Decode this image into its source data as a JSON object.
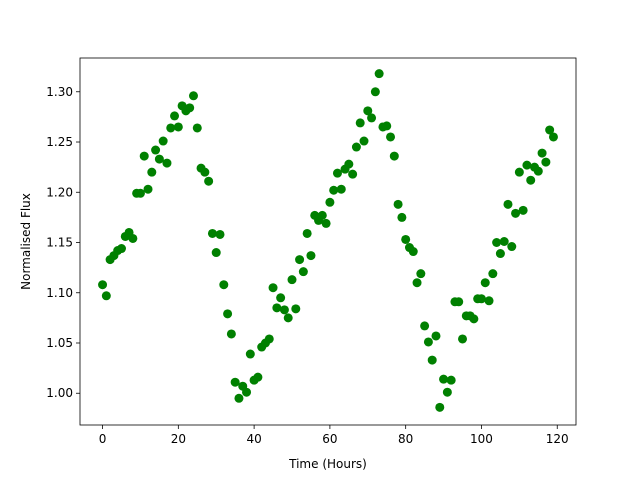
{
  "chart_data": {
    "type": "scatter",
    "xlabel": "Time (Hours)",
    "ylabel": "Normalised Flux",
    "color": "#008000",
    "x": [
      0,
      1,
      2,
      3,
      4,
      5,
      6,
      7,
      8,
      9,
      10,
      11,
      12,
      13,
      14,
      15,
      16,
      17,
      18,
      19,
      20,
      21,
      22,
      23,
      24,
      25,
      26,
      27,
      28,
      29,
      30,
      31,
      32,
      33,
      34,
      35,
      36,
      37,
      38,
      39,
      40,
      41,
      42,
      43,
      44,
      45,
      46,
      47,
      48,
      49,
      50,
      51,
      52,
      53,
      54,
      55,
      56,
      57,
      58,
      59,
      60,
      61,
      62,
      63,
      64,
      65,
      66,
      67,
      68,
      69,
      70,
      71,
      72,
      73,
      74,
      75,
      76,
      77,
      78,
      79,
      80,
      81,
      82,
      83,
      84,
      85,
      86,
      87,
      88,
      89,
      90,
      91,
      92,
      93,
      94,
      95,
      96,
      97,
      98,
      99,
      100,
      101,
      102,
      103,
      104,
      105,
      106,
      107,
      108,
      109,
      110,
      111,
      112,
      113,
      114,
      115,
      116,
      117,
      118,
      119
    ],
    "values": [
      1.108,
      1.097,
      1.133,
      1.137,
      1.142,
      1.144,
      1.156,
      1.16,
      1.154,
      1.199,
      1.199,
      1.236,
      1.203,
      1.22,
      1.242,
      1.233,
      1.251,
      1.229,
      1.264,
      1.276,
      1.265,
      1.286,
      1.281,
      1.284,
      1.296,
      1.264,
      1.224,
      1.22,
      1.211,
      1.159,
      1.14,
      1.158,
      1.108,
      1.079,
      1.059,
      1.011,
      0.995,
      1.007,
      1.001,
      1.039,
      1.013,
      1.016,
      1.046,
      1.05,
      1.054,
      1.105,
      1.085,
      1.095,
      1.083,
      1.075,
      1.113,
      1.084,
      1.133,
      1.121,
      1.159,
      1.137,
      1.177,
      1.172,
      1.177,
      1.169,
      1.19,
      1.202,
      1.219,
      1.203,
      1.223,
      1.228,
      1.218,
      1.245,
      1.269,
      1.251,
      1.281,
      1.274,
      1.3,
      1.318,
      1.265,
      1.266,
      1.255,
      1.236,
      1.188,
      1.175,
      1.153,
      1.145,
      1.141,
      1.11,
      1.119,
      1.067,
      1.051,
      1.033,
      1.057,
      0.986,
      1.014,
      1.001,
      1.013,
      1.091,
      1.091,
      1.054,
      1.077,
      1.077,
      1.074,
      1.094,
      1.094,
      1.11,
      1.092,
      1.119,
      1.15,
      1.139,
      1.151,
      1.188,
      1.146,
      1.179,
      1.22,
      1.182,
      1.227,
      1.212,
      1.225,
      1.221,
      1.239,
      1.23,
      1.262,
      1.255
    ],
    "xlim": [
      -5.95,
      124.95
    ],
    "ylim": [
      0.9684,
      1.3336
    ],
    "xticks": [
      0,
      20,
      40,
      60,
      80,
      100,
      120
    ],
    "yticks": [
      {
        "value": 1.0,
        "label": "1.00"
      },
      {
        "value": 1.05,
        "label": "1.05"
      },
      {
        "value": 1.1,
        "label": "1.10"
      },
      {
        "value": 1.15,
        "label": "1.15"
      },
      {
        "value": 1.2,
        "label": "1.20"
      },
      {
        "value": 1.25,
        "label": "1.25"
      },
      {
        "value": 1.3,
        "label": "1.30"
      }
    ]
  }
}
